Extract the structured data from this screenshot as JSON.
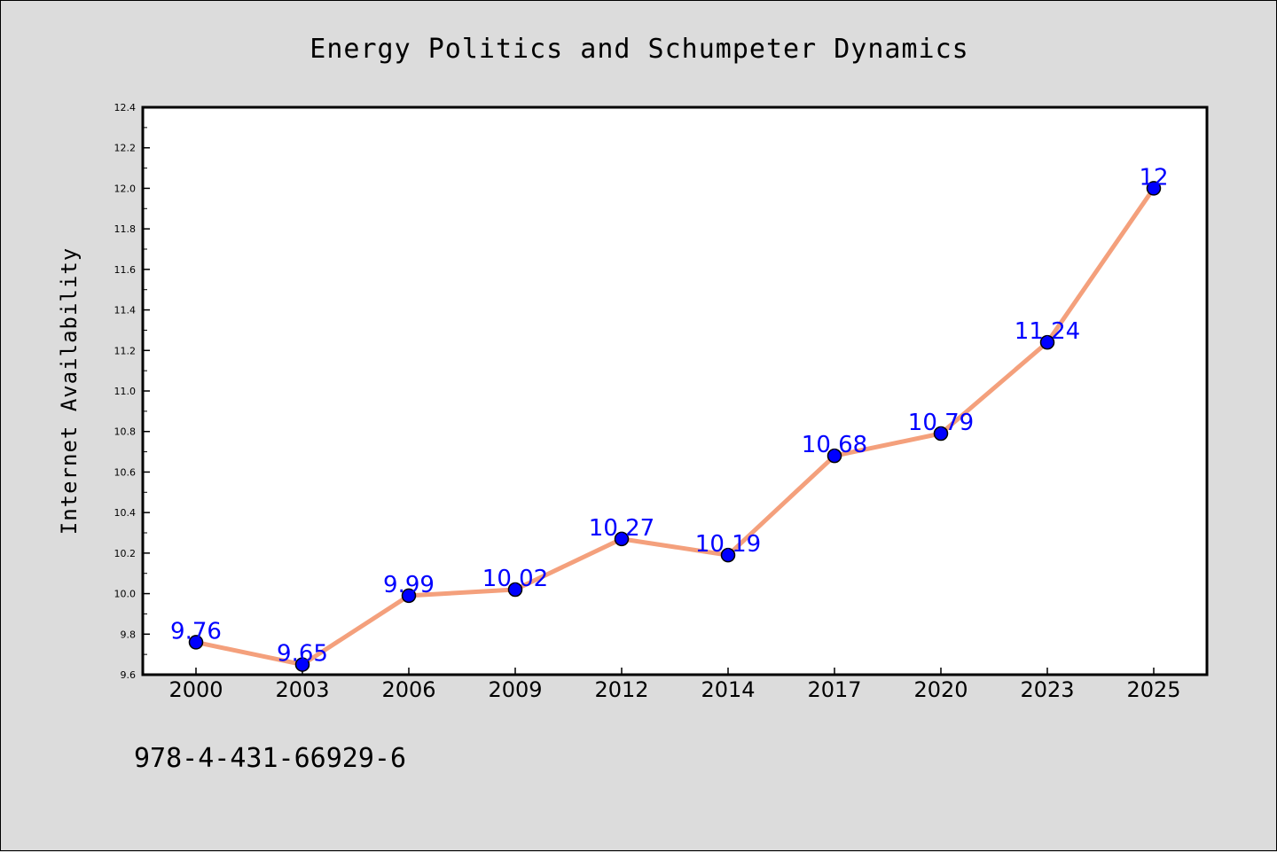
{
  "chart_data": {
    "type": "line",
    "title": "Energy Politics and Schumpeter Dynamics",
    "xlabel": "",
    "ylabel": "Internet Availability",
    "categories": [
      "2000",
      "2003",
      "2006",
      "2009",
      "2012",
      "2014",
      "2017",
      "2020",
      "2023",
      "2025"
    ],
    "series": [
      {
        "values": [
          9.76,
          9.65,
          9.99,
          10.02,
          10.27,
          10.19,
          10.68,
          10.79,
          11.24,
          12
        ],
        "labels": [
          "9.76",
          "9.65",
          "9.99",
          "10.02",
          "10.27",
          "10.19",
          "10.68",
          "10.79",
          "11.24",
          "12"
        ],
        "line_color": "#f4a07c",
        "marker_color": "#0000ff"
      }
    ],
    "ylim": [
      9.6,
      12.4
    ],
    "yticks": [
      "9.6",
      "9.8",
      "10.0",
      "10.2",
      "10.4",
      "10.6",
      "10.8",
      "11.0",
      "11.2",
      "11.4",
      "11.6",
      "11.8",
      "12.0",
      "12.2",
      "12.4"
    ],
    "grid": false,
    "legend": "none"
  },
  "footer": {
    "isbn": "978-4-431-66929-6"
  },
  "colors": {
    "background": "#dcdcdc",
    "plot_background": "#ffffff",
    "data_label": "#0000ff"
  }
}
